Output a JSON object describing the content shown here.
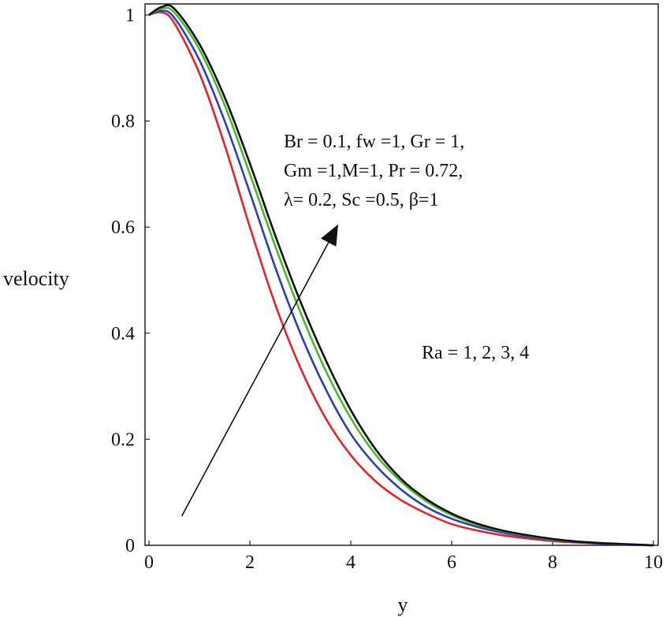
{
  "chart_data": {
    "type": "line",
    "title": "",
    "xlabel": "y",
    "ylabel": "velocity",
    "xlim": [
      0,
      10
    ],
    "ylim": [
      0,
      1
    ],
    "grid": false,
    "x_ticks": [
      0,
      2,
      4,
      6,
      8,
      10
    ],
    "x_tick_labels": [
      "0",
      "2",
      "4",
      "6",
      "8",
      "10"
    ],
    "y_ticks": [
      0,
      0.2,
      0.4,
      0.6,
      0.8,
      1
    ],
    "y_tick_labels": [
      "0",
      "0.2",
      "0.4",
      "0.6",
      "0.8",
      "1"
    ],
    "x": [
      0,
      0.25,
      0.5,
      1,
      1.5,
      2,
      2.5,
      3,
      3.5,
      4,
      4.5,
      5,
      5.5,
      6,
      6.5,
      7,
      7.5,
      8,
      8.5,
      9,
      9.5,
      10
    ],
    "series": [
      {
        "color": "#e8202a",
        "values": [
          1.0,
          1.005,
          0.985,
          0.89,
          0.755,
          0.6,
          0.455,
          0.335,
          0.24,
          0.17,
          0.12,
          0.085,
          0.06,
          0.04,
          0.028,
          0.019,
          0.013,
          0.008,
          0.005,
          0.003,
          0.001,
          0.0
        ]
      },
      {
        "color": "#2b3fb8",
        "values": [
          1.0,
          1.008,
          0.995,
          0.915,
          0.8,
          0.665,
          0.525,
          0.4,
          0.295,
          0.21,
          0.15,
          0.105,
          0.072,
          0.05,
          0.035,
          0.024,
          0.016,
          0.01,
          0.006,
          0.003,
          0.001,
          0.0
        ]
      },
      {
        "color": "#49b92c",
        "values": [
          1.0,
          1.012,
          1.005,
          0.935,
          0.83,
          0.7,
          0.565,
          0.44,
          0.33,
          0.24,
          0.17,
          0.12,
          0.083,
          0.057,
          0.039,
          0.027,
          0.018,
          0.011,
          0.007,
          0.004,
          0.002,
          0.0
        ]
      },
      {
        "color": "#111111",
        "values": [
          1.0,
          1.015,
          1.012,
          0.945,
          0.845,
          0.72,
          0.585,
          0.46,
          0.35,
          0.255,
          0.18,
          0.125,
          0.087,
          0.06,
          0.041,
          0.028,
          0.019,
          0.012,
          0.007,
          0.004,
          0.002,
          0.0
        ]
      }
    ],
    "annotations": {
      "params_line1": "Br = 0.1,  fw =1, Gr = 1,",
      "params_line2": "Gm =1,M=1, Pr = 0.72,",
      "params_line3": "λ= 0.2, Sc =0.5,  β=1",
      "ra_label": "Ra = 1, 2, 3, 4"
    },
    "arrow": {
      "from": [
        0.65,
        0.055
      ],
      "to": [
        3.75,
        0.605
      ]
    }
  }
}
